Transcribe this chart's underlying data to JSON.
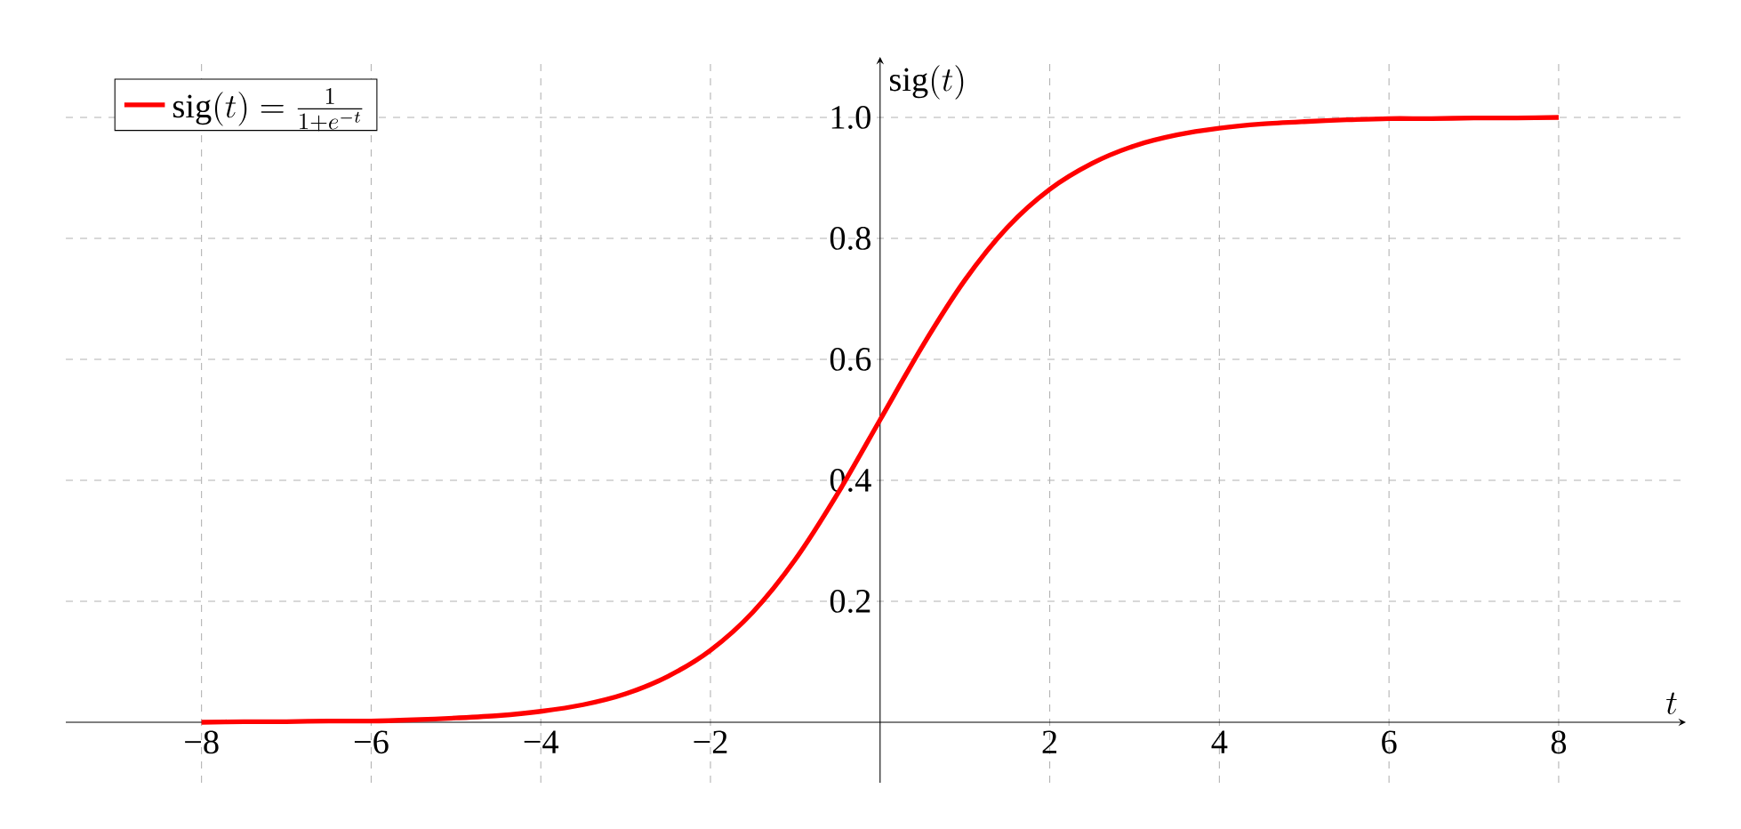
{
  "chart_data": {
    "type": "line",
    "xlabel": "t",
    "ylabel": "\\mathrm{sig}(t)",
    "x": [
      -8,
      -7.5,
      -7,
      -6.5,
      -6,
      -5.5,
      -5,
      -4.5,
      -4,
      -3.5,
      -3,
      -2.5,
      -2,
      -1.5,
      -1,
      -0.5,
      0,
      0.5,
      1,
      1.5,
      2,
      2.5,
      3,
      3.5,
      4,
      4.5,
      5,
      5.5,
      6,
      6.5,
      7,
      7.5,
      8
    ],
    "series": [
      {
        "name": "\\mathrm{sig}(t) = \\frac{1}{1+e^{-t}}",
        "color": "#ff0000",
        "values": [
          0.0,
          0.001,
          0.001,
          0.002,
          0.002,
          0.004,
          0.007,
          0.011,
          0.018,
          0.029,
          0.047,
          0.076,
          0.119,
          0.182,
          0.269,
          0.378,
          0.5,
          0.622,
          0.731,
          0.818,
          0.881,
          0.924,
          0.953,
          0.971,
          0.982,
          0.989,
          0.993,
          0.996,
          0.998,
          0.998,
          0.999,
          0.999,
          1.0
        ]
      }
    ],
    "xlim": [
      -9.6,
      9.5
    ],
    "ylim": [
      -0.1,
      1.1
    ],
    "xticks": [
      {
        "value": -8,
        "label": "−8"
      },
      {
        "value": -6,
        "label": "−6"
      },
      {
        "value": -4,
        "label": "−4"
      },
      {
        "value": -2,
        "label": "−2"
      },
      2,
      4,
      6,
      8
    ],
    "yticks": [
      0.2,
      0.4,
      0.6,
      0.8,
      {
        "value": 1,
        "label": "1.0"
      }
    ],
    "grid": true,
    "legend": "top left",
    "marker": "none",
    "line_style": "solid"
  }
}
